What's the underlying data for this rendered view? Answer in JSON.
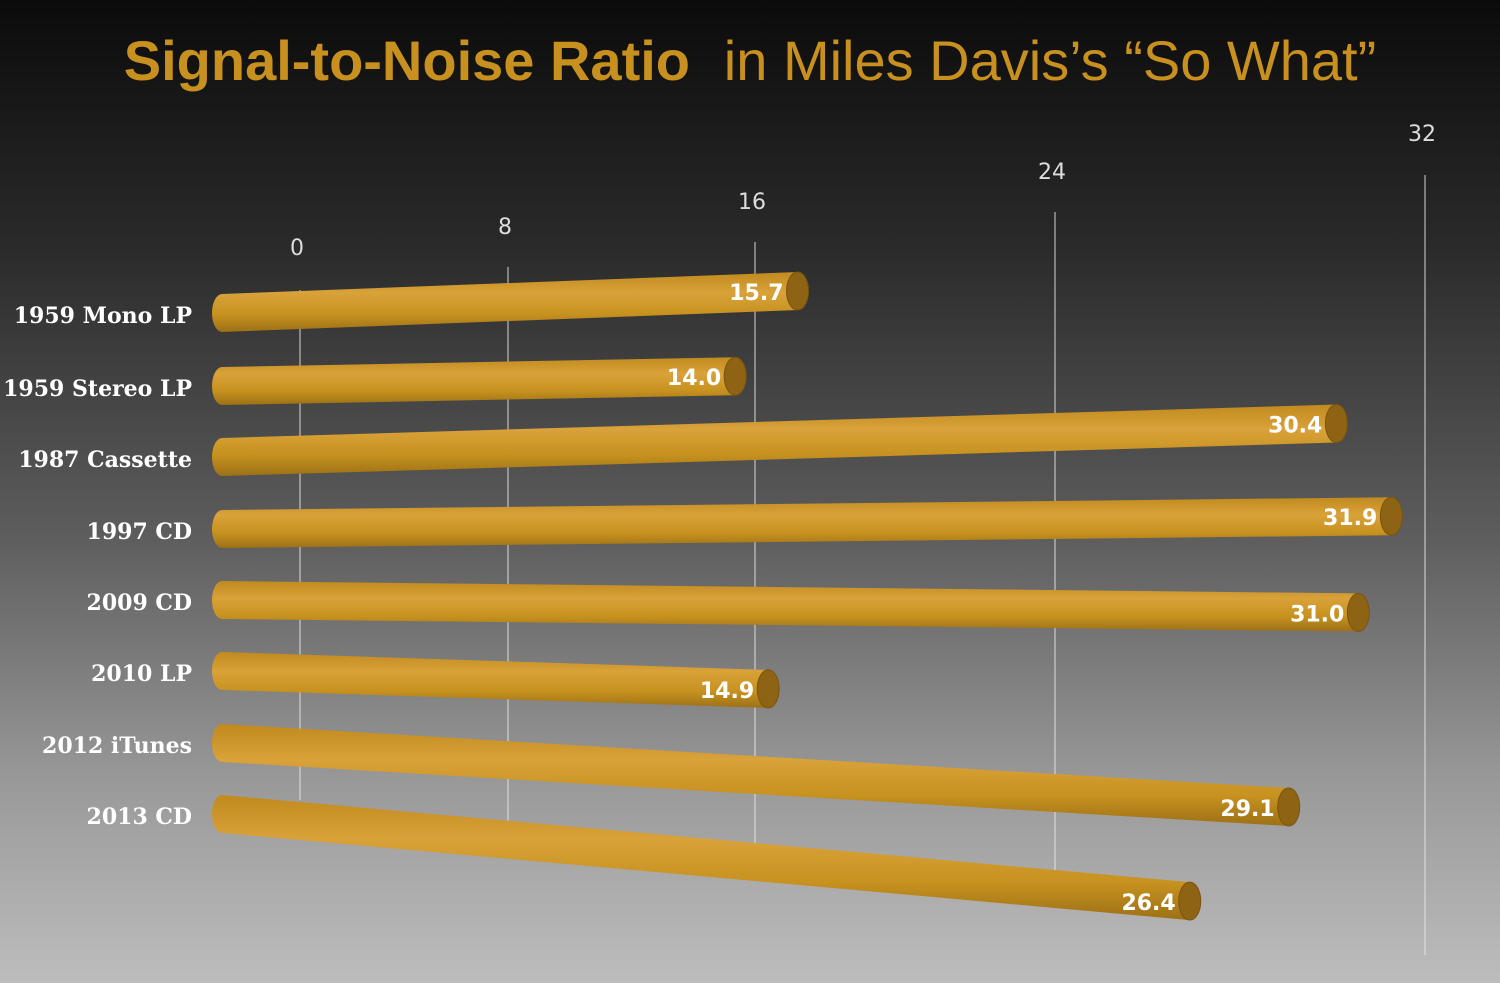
{
  "chart_data": {
    "type": "bar",
    "orientation": "horizontal",
    "title_bold": "Signal-to-Noise Ratio",
    "title_rest": "in Miles Davis’s “So What”",
    "categories": [
      "1959 Mono LP",
      "1959 Stereo LP",
      "1987 Cassette",
      "1997 CD",
      "2009 CD",
      "2010 LP",
      "2012 iTunes",
      "2013 CD"
    ],
    "values": [
      15.7,
      14.0,
      30.4,
      31.9,
      31.0,
      14.9,
      29.1,
      26.4
    ],
    "value_labels": [
      "15.7",
      "14.0",
      "30.4",
      "31.9",
      "31.0",
      "14.9",
      "29.1",
      "26.4"
    ],
    "xticks": [
      "0",
      "8",
      "16",
      "24",
      "32"
    ],
    "xlim": [
      0,
      32
    ],
    "grid": true,
    "colors": {
      "bar": "#c48f22",
      "bar_light": "#e0ad45",
      "bar_dark": "#8e6414",
      "title": "#c8901f",
      "category_text": "#ffffff",
      "gridline": "#e8e8e8"
    }
  }
}
